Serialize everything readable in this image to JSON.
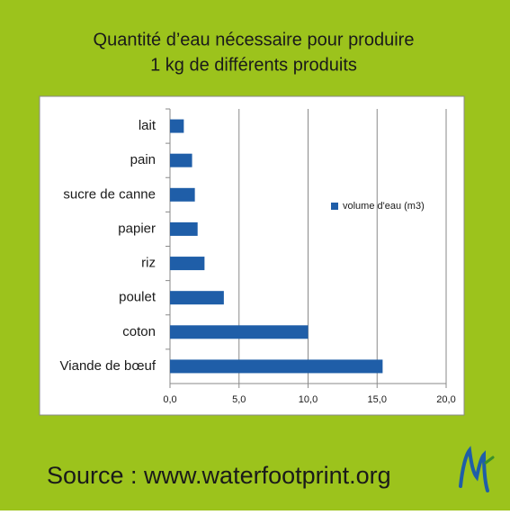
{
  "chart_data": {
    "type": "bar",
    "orientation": "horizontal",
    "title": [
      "Quantité d’eau nécessaire pour produire",
      "1 kg de différents produits"
    ],
    "categories": [
      "lait",
      "pain",
      "sucre de canne",
      "papier",
      "riz",
      "poulet",
      "coton",
      "Viande de bœuf"
    ],
    "series": [
      {
        "name": "volume d'eau (m3)",
        "color": "#1f5ea8",
        "values": [
          1.0,
          1.6,
          1.8,
          2.0,
          2.5,
          3.9,
          10.0,
          15.4
        ]
      }
    ],
    "xlim": [
      0,
      20
    ],
    "xticks": [
      {
        "value": 0,
        "label": "0,0"
      },
      {
        "value": 5,
        "label": "5,0"
      },
      {
        "value": 10,
        "label": "10,0"
      },
      {
        "value": 15,
        "label": "15,0"
      },
      {
        "value": 20,
        "label": "20,0"
      }
    ],
    "grid": true,
    "legend": "right",
    "source": "Source : www.waterfootprint.org"
  }
}
